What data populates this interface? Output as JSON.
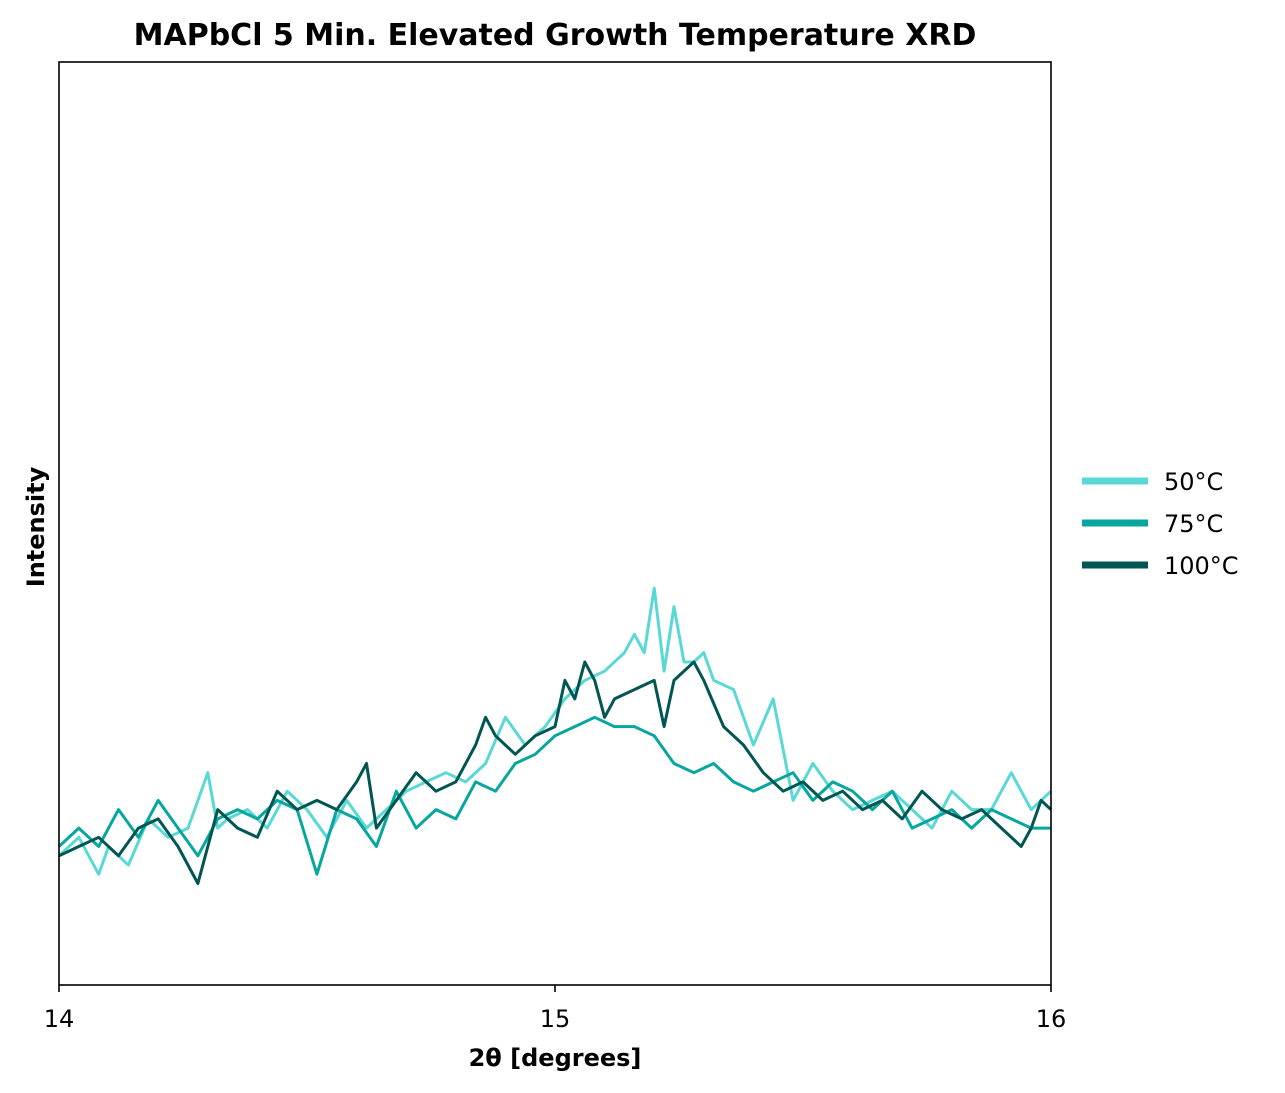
{
  "chart_data": {
    "type": "line",
    "title": "MAPbCl 5 Min. Elevated Growth Temperature XRD",
    "xlabel": "2θ [degrees]",
    "ylabel": "Intensity",
    "xlim": [
      14,
      16
    ],
    "ylim": [
      0,
      1
    ],
    "xticks": [
      14,
      15,
      16
    ],
    "xtick_labels": [
      "14",
      "15",
      "16"
    ],
    "yticks_shown": false,
    "grid": false,
    "legend_position": "outside-right",
    "series": [
      {
        "name": "50°C",
        "color": "#5AD8D6",
        "x": [
          14.0,
          14.04,
          14.08,
          14.1,
          14.14,
          14.18,
          14.22,
          14.26,
          14.3,
          14.32,
          14.34,
          14.38,
          14.42,
          14.46,
          14.5,
          14.54,
          14.58,
          14.62,
          14.66,
          14.7,
          14.74,
          14.78,
          14.82,
          14.86,
          14.9,
          14.94,
          14.98,
          15.02,
          15.06,
          15.1,
          15.14,
          15.16,
          15.18,
          15.2,
          15.22,
          15.24,
          15.26,
          15.28,
          15.3,
          15.32,
          15.36,
          15.4,
          15.44,
          15.48,
          15.52,
          15.56,
          15.6,
          15.64,
          15.68,
          15.72,
          15.76,
          15.8,
          15.84,
          15.88,
          15.92,
          15.96,
          16.0
        ],
        "y": [
          0.14,
          0.16,
          0.12,
          0.15,
          0.13,
          0.18,
          0.16,
          0.17,
          0.23,
          0.17,
          0.18,
          0.19,
          0.17,
          0.21,
          0.19,
          0.16,
          0.2,
          0.17,
          0.19,
          0.21,
          0.22,
          0.23,
          0.22,
          0.24,
          0.29,
          0.26,
          0.28,
          0.31,
          0.33,
          0.34,
          0.36,
          0.38,
          0.36,
          0.43,
          0.34,
          0.41,
          0.35,
          0.35,
          0.36,
          0.33,
          0.32,
          0.26,
          0.31,
          0.2,
          0.24,
          0.21,
          0.19,
          0.2,
          0.21,
          0.19,
          0.17,
          0.21,
          0.19,
          0.19,
          0.23,
          0.19,
          0.21
        ]
      },
      {
        "name": "75°C",
        "color": "#07A69E",
        "x": [
          14.0,
          14.04,
          14.08,
          14.12,
          14.16,
          14.2,
          14.24,
          14.28,
          14.32,
          14.36,
          14.4,
          14.44,
          14.48,
          14.52,
          14.56,
          14.6,
          14.64,
          14.68,
          14.72,
          14.76,
          14.8,
          14.84,
          14.88,
          14.92,
          14.96,
          15.0,
          15.04,
          15.08,
          15.12,
          15.16,
          15.2,
          15.24,
          15.28,
          15.32,
          15.36,
          15.4,
          15.44,
          15.48,
          15.52,
          15.56,
          15.6,
          15.64,
          15.68,
          15.72,
          15.76,
          15.8,
          15.84,
          15.88,
          15.92,
          15.96,
          16.0
        ],
        "y": [
          0.15,
          0.17,
          0.15,
          0.19,
          0.16,
          0.2,
          0.17,
          0.14,
          0.18,
          0.19,
          0.18,
          0.2,
          0.19,
          0.12,
          0.19,
          0.18,
          0.15,
          0.21,
          0.17,
          0.19,
          0.18,
          0.22,
          0.21,
          0.24,
          0.25,
          0.27,
          0.28,
          0.29,
          0.28,
          0.28,
          0.27,
          0.24,
          0.23,
          0.24,
          0.22,
          0.21,
          0.22,
          0.23,
          0.2,
          0.22,
          0.21,
          0.19,
          0.21,
          0.17,
          0.18,
          0.19,
          0.17,
          0.19,
          0.18,
          0.17,
          0.17
        ]
      },
      {
        "name": "100°C",
        "color": "#005652",
        "x": [
          14.0,
          14.04,
          14.08,
          14.12,
          14.16,
          14.2,
          14.24,
          14.28,
          14.32,
          14.36,
          14.4,
          14.44,
          14.48,
          14.52,
          14.56,
          14.6,
          14.62,
          14.64,
          14.68,
          14.72,
          14.76,
          14.8,
          14.84,
          14.86,
          14.88,
          14.92,
          14.96,
          15.0,
          15.02,
          15.04,
          15.06,
          15.08,
          15.1,
          15.12,
          15.16,
          15.2,
          15.22,
          15.24,
          15.28,
          15.3,
          15.34,
          15.38,
          15.42,
          15.46,
          15.5,
          15.54,
          15.58,
          15.62,
          15.66,
          15.7,
          15.74,
          15.78,
          15.82,
          15.86,
          15.9,
          15.94,
          15.96,
          15.98,
          16.0
        ],
        "y": [
          0.14,
          0.15,
          0.16,
          0.14,
          0.17,
          0.18,
          0.15,
          0.11,
          0.19,
          0.17,
          0.16,
          0.21,
          0.19,
          0.2,
          0.19,
          0.22,
          0.24,
          0.17,
          0.2,
          0.23,
          0.21,
          0.22,
          0.26,
          0.29,
          0.27,
          0.25,
          0.27,
          0.28,
          0.33,
          0.31,
          0.35,
          0.33,
          0.29,
          0.31,
          0.32,
          0.33,
          0.28,
          0.33,
          0.35,
          0.33,
          0.28,
          0.26,
          0.23,
          0.21,
          0.22,
          0.2,
          0.21,
          0.19,
          0.2,
          0.18,
          0.21,
          0.19,
          0.18,
          0.19,
          0.17,
          0.15,
          0.17,
          0.2,
          0.19
        ]
      }
    ]
  }
}
